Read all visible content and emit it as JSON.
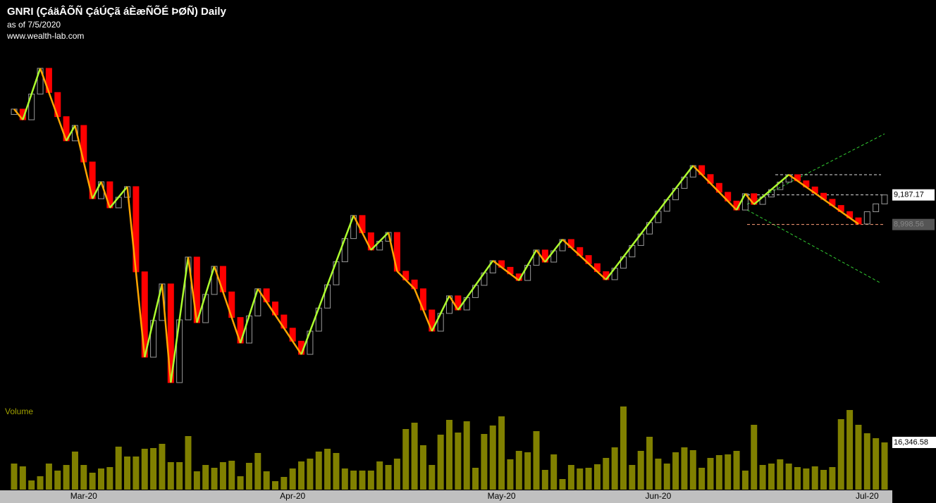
{
  "chart_data": [
    {
      "type": "candlestick",
      "title": "GNRI (ÇáäÂÕÑ ÇáÚÇã áÈæÑÕÉ ÞØÑ) Daily",
      "subtitle": "as of 7/5/2020",
      "source": "www.wealth-lab.com",
      "open": [
        9700,
        9734,
        9666,
        9830,
        9994,
        9840,
        9686,
        9532,
        9630,
        9397,
        9163,
        9271,
        9105,
        9172,
        9240,
        8697,
        8153,
        8387,
        8620,
        7991,
        8391,
        8791,
        8373,
        8553,
        8732,
        8569,
        8406,
        8243,
        8416,
        8589,
        8505,
        8422,
        8338,
        8255,
        8171,
        8319,
        8466,
        8614,
        8761,
        8909,
        9056,
        8946,
        8836,
        8892,
        8948,
        8701,
        8645,
        8589,
        8454,
        8319,
        8432,
        8544,
        8454,
        8533,
        8611,
        8690,
        8768,
        8726,
        8684,
        8642,
        8739,
        8836,
        8759,
        8831,
        8903,
        8852,
        8801,
        8749,
        8698,
        8647,
        8720,
        8792,
        8865,
        8938,
        9011,
        9083,
        9156,
        9229,
        9301,
        9374,
        9317,
        9261,
        9204,
        9148,
        9091,
        9195,
        9127,
        9174,
        9221,
        9269,
        9316,
        9277,
        9238,
        9198,
        9159,
        9120,
        9081,
        9041,
        9002,
        9080,
        9130
      ],
      "close": [
        9734,
        9666,
        9830,
        9994,
        9840,
        9686,
        9532,
        9630,
        9397,
        9163,
        9271,
        9105,
        9172,
        9240,
        8697,
        8153,
        8387,
        8620,
        7991,
        8391,
        8791,
        8373,
        8553,
        8732,
        8569,
        8406,
        8243,
        8416,
        8589,
        8505,
        8422,
        8338,
        8255,
        8171,
        8319,
        8466,
        8614,
        8761,
        8909,
        9056,
        8946,
        8836,
        8892,
        8948,
        8701,
        8645,
        8589,
        8454,
        8319,
        8432,
        8544,
        8454,
        8533,
        8611,
        8690,
        8768,
        8726,
        8684,
        8642,
        8739,
        8836,
        8759,
        8831,
        8903,
        8852,
        8801,
        8749,
        8698,
        8647,
        8720,
        8792,
        8865,
        8938,
        9011,
        9083,
        9156,
        9229,
        9301,
        9374,
        9317,
        9261,
        9204,
        9148,
        9091,
        9195,
        9127,
        9174,
        9221,
        9269,
        9316,
        9277,
        9238,
        9198,
        9159,
        9120,
        9081,
        9041,
        9002,
        9080,
        9130,
        9187.17
      ],
      "up_color": "#9a9a9a",
      "down_color": "#ff0000",
      "ylim": [
        7960,
        10160
      ],
      "zigzag": {
        "x": [
          0,
          1,
          3,
          6,
          7,
          9,
          10,
          11,
          13,
          15,
          17,
          18,
          20,
          21,
          23,
          26,
          28,
          33,
          39,
          41,
          43,
          44,
          46,
          48,
          50,
          51,
          55,
          58,
          60,
          61,
          63,
          68,
          78,
          83,
          84,
          85,
          89,
          97
        ],
        "values": [
          9734,
          9666,
          9994,
          9532,
          9630,
          9163,
          9271,
          9105,
          9240,
          8153,
          8620,
          7991,
          8791,
          8373,
          8732,
          8243,
          8589,
          8171,
          9056,
          8836,
          8948,
          8701,
          8589,
          8319,
          8544,
          8454,
          8768,
          8642,
          8836,
          8759,
          8903,
          8647,
          9374,
          9091,
          9195,
          9127,
          9316,
          9002
        ],
        "up_color": "#adff2f",
        "down_color": "#ffa500"
      },
      "price_labels": [
        {
          "value": 9187.17,
          "label": "9,187.17"
        },
        {
          "value": 8998.56,
          "label": "8,998.56"
        }
      ]
    },
    {
      "type": "bar",
      "title": "Volume",
      "color": "#808000",
      "ylim": [
        0,
        30500
      ],
      "categories": [
        null,
        null,
        null,
        null,
        null,
        null,
        null,
        null,
        "Mar-20",
        null,
        null,
        null,
        null,
        null,
        null,
        null,
        null,
        null,
        null,
        null,
        null,
        null,
        null,
        null,
        null,
        null,
        null,
        null,
        null,
        null,
        null,
        null,
        "Apr-20",
        null,
        null,
        null,
        null,
        null,
        null,
        null,
        null,
        null,
        null,
        null,
        null,
        null,
        null,
        null,
        null,
        null,
        null,
        null,
        null,
        null,
        null,
        null,
        "May-20",
        null,
        null,
        null,
        null,
        null,
        null,
        null,
        null,
        null,
        null,
        null,
        null,
        null,
        null,
        null,
        null,
        null,
        "Jun-20",
        null,
        null,
        null,
        null,
        null,
        null,
        null,
        null,
        null,
        null,
        null,
        null,
        null,
        null,
        null,
        null,
        null,
        null,
        null,
        null,
        null,
        null,
        null,
        "Jul-20",
        null,
        null
      ],
      "values": [
        9028,
        8052,
        3172,
        4636,
        9028,
        6588,
        8540,
        13176,
        8540,
        5856,
        7320,
        7808,
        14884,
        11468,
        11468,
        14152,
        14396,
        15860,
        9516,
        9516,
        18544,
        6344,
        8540,
        7564,
        9516,
        10004,
        4636,
        9272,
        12688,
        6344,
        2928,
        4392,
        7320,
        9760,
        10736,
        13176,
        14152,
        12688,
        7320,
        6588,
        6588,
        6588,
        9760,
        8540,
        10736,
        20984,
        23180,
        15372,
        8540,
        19032,
        24156,
        19764,
        23668,
        7564,
        19276,
        22204,
        25376,
        10492,
        13420,
        12932,
        20252,
        6832,
        12200,
        3660,
        8540,
        7320,
        7564,
        8784,
        10980,
        14640,
        28792,
        8540,
        13420,
        18300,
        10736,
        9028,
        12932,
        14640,
        13664,
        7564,
        10980,
        11956,
        12200,
        13420,
        6588,
        22448,
        8540,
        9028,
        10492,
        9028,
        7808,
        7320,
        8052,
        6832,
        7808,
        24400,
        27572,
        22448,
        19520,
        17812,
        16346.58
      ],
      "value_labels": [
        null,
        null,
        null,
        null,
        null,
        null,
        null,
        null,
        null,
        null,
        null,
        null,
        null,
        null,
        null,
        null,
        null,
        null,
        null,
        null,
        null,
        null,
        null,
        null,
        null,
        null,
        null,
        null,
        null,
        null,
        null,
        null,
        null,
        null,
        null,
        null,
        null,
        null,
        null,
        null,
        null,
        null,
        null,
        null,
        null,
        null,
        null,
        null,
        null,
        null,
        null,
        null,
        null,
        null,
        null,
        null,
        null,
        null,
        null,
        null,
        null,
        null,
        null,
        null,
        null,
        null,
        null,
        null,
        null,
        null,
        null,
        null,
        null,
        null,
        null,
        null,
        null,
        null,
        null,
        null,
        null,
        null,
        null,
        null,
        null,
        null,
        null,
        null,
        null,
        null,
        null,
        null,
        null,
        null,
        null,
        null,
        null,
        null,
        null,
        null,
        "16,346.58"
      ]
    }
  ]
}
